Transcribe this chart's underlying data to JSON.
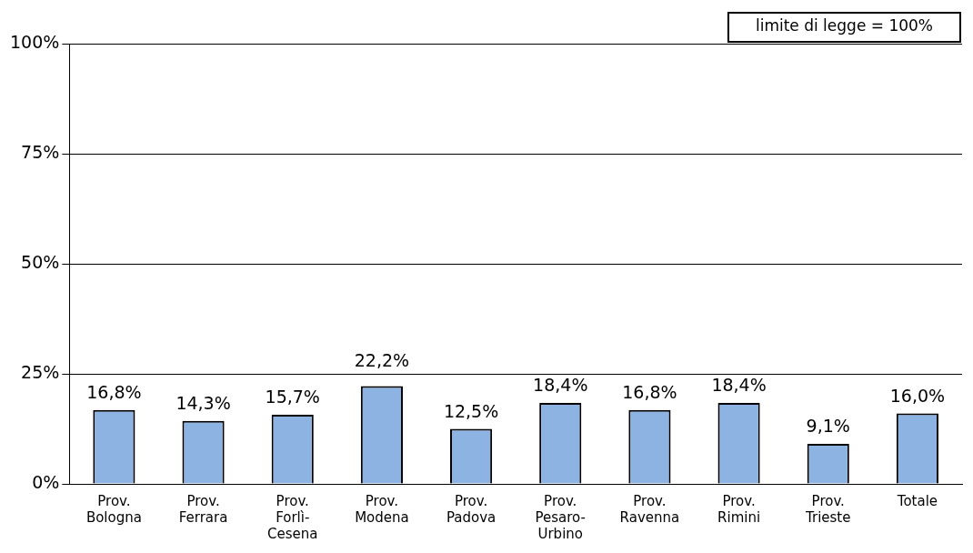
{
  "chart_data": {
    "type": "bar",
    "categories": [
      "Prov. Bologna",
      "Prov. Ferrara",
      "Prov. Forlì-Cesena",
      "Prov. Modena",
      "Prov. Padova",
      "Prov. Pesaro-Urbino",
      "Prov. Ravenna",
      "Prov. Rimini",
      "Prov. Trieste",
      "Totale"
    ],
    "values": [
      16.8,
      14.3,
      15.7,
      22.2,
      12.5,
      18.4,
      16.8,
      18.4,
      9.1,
      16.0
    ],
    "value_labels": [
      "16,8%",
      "14,3%",
      "15,7%",
      "22,2%",
      "12,5%",
      "18,4%",
      "16,8%",
      "18,4%",
      "9,1%",
      "16,0%"
    ],
    "color": "#8db3e2",
    "ylim": [
      0,
      100
    ],
    "yticks": [
      {
        "value": 0,
        "label": "0%"
      },
      {
        "value": 25,
        "label": "25%"
      },
      {
        "value": 50,
        "label": "50%"
      },
      {
        "value": 75,
        "label": "75%"
      },
      {
        "value": 100,
        "label": "100%"
      }
    ],
    "grid": "y",
    "annotations": [
      "limite di legge = 100%"
    ]
  }
}
